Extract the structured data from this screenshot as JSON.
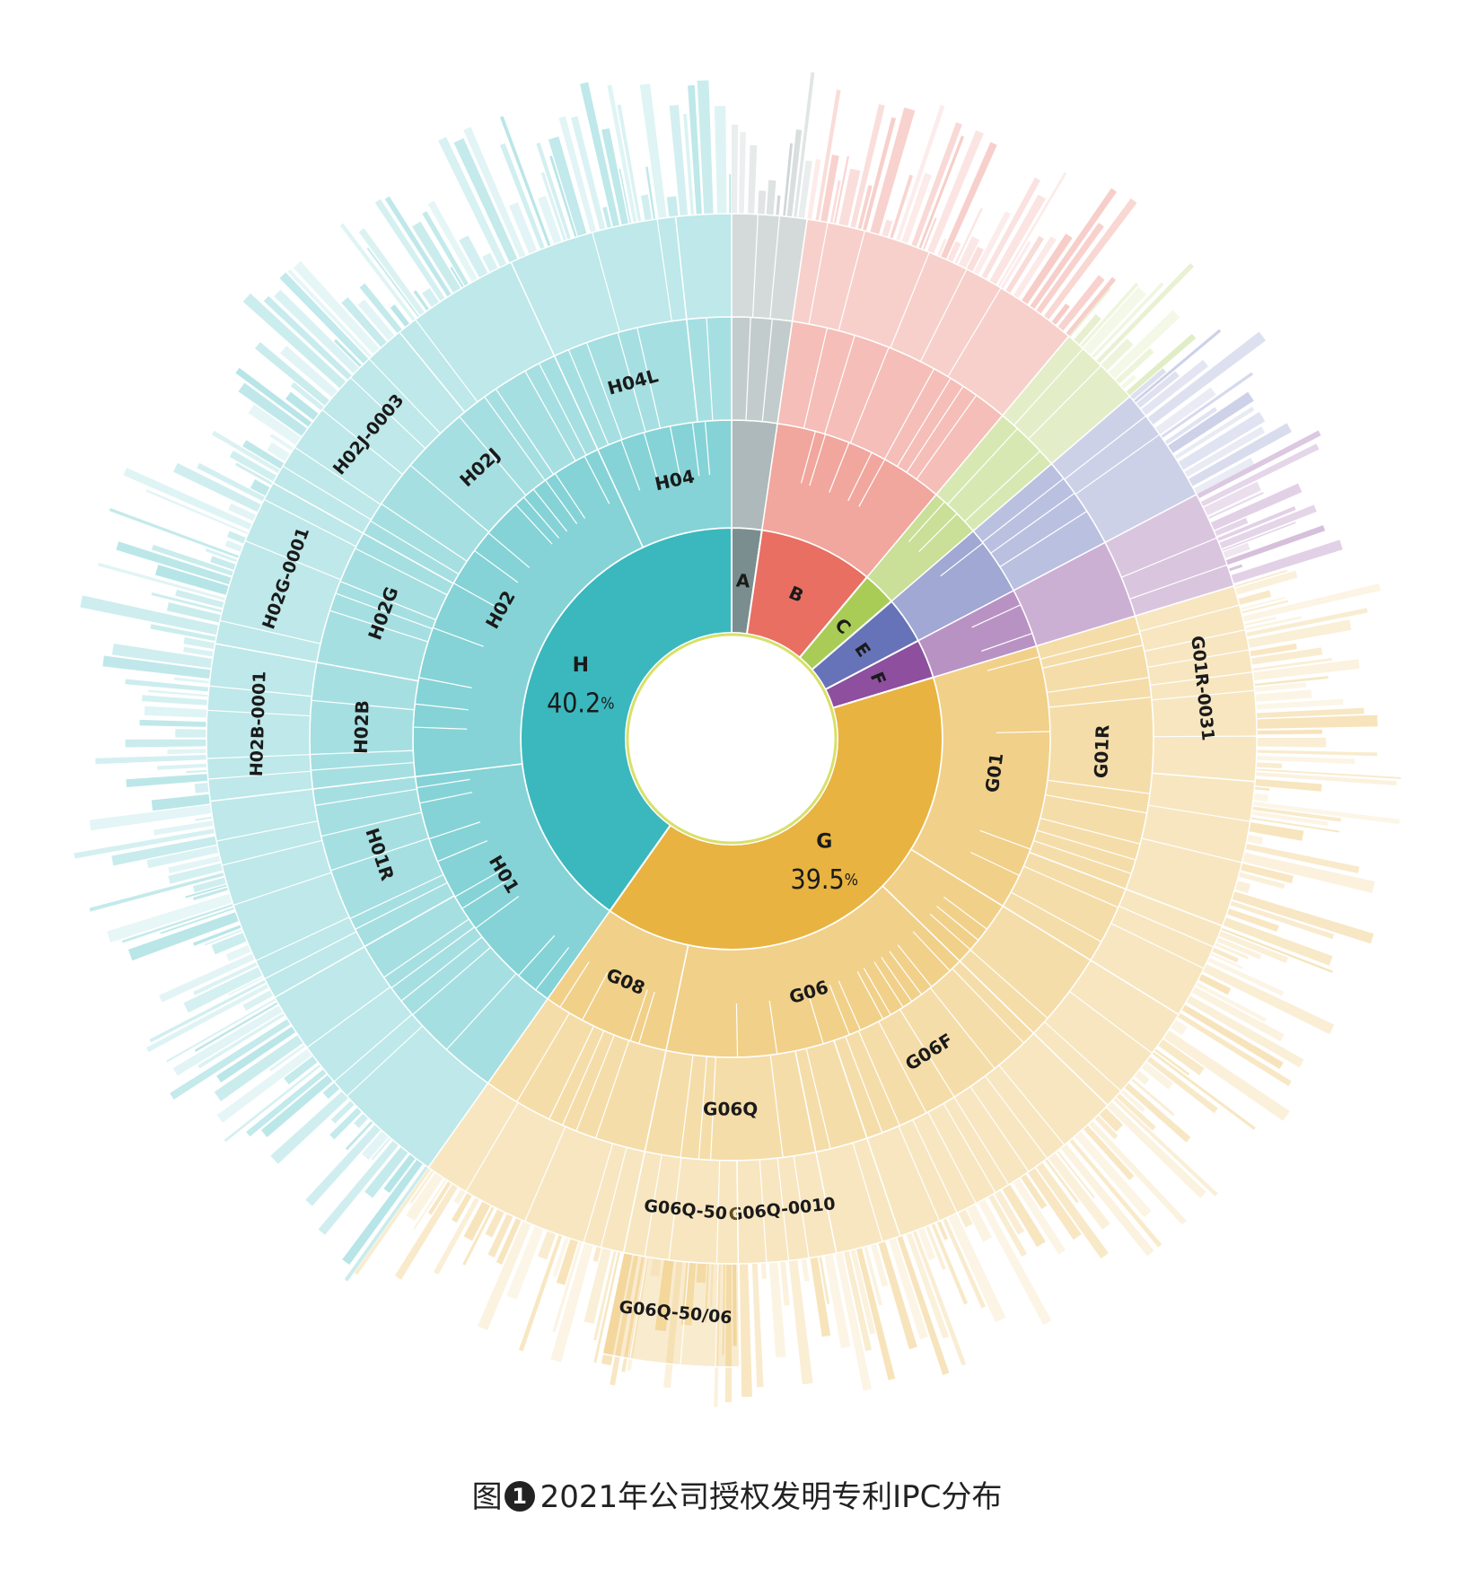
{
  "caption": {
    "prefix": "图",
    "number": "1",
    "text": "2021年公司授权发明专利IPC分布"
  },
  "chart_data": {
    "type": "sunburst",
    "title": "",
    "rings": [
      {
        "level": 1,
        "segments": [
          {
            "label": "A",
            "share": 2.3,
            "color": "#7b8e8f"
          },
          {
            "label": "B",
            "share": 8.8,
            "color": "#e86f62"
          },
          {
            "label": "C",
            "share": 2.6,
            "color": "#a9cc57"
          },
          {
            "label": "E",
            "share": 3.6,
            "color": "#6673b8"
          },
          {
            "label": "F",
            "share": 3.0,
            "color": "#8e4f9f"
          },
          {
            "label": "G",
            "share": 39.5,
            "pct_text": "39.5",
            "color": "#e8b340"
          },
          {
            "label": "H",
            "share": 40.2,
            "pct_text": "40.2",
            "color": "#3ab8bd"
          }
        ]
      },
      {
        "level": 2,
        "segments": [
          {
            "parent": "A",
            "label": "",
            "share": 2.3
          },
          {
            "parent": "B",
            "label": "",
            "share": 8.8
          },
          {
            "parent": "C",
            "label": "",
            "share": 2.6
          },
          {
            "parent": "E",
            "label": "",
            "share": 3.6
          },
          {
            "parent": "F",
            "label": "",
            "share": 3.0
          },
          {
            "parent": "G",
            "label": "G01",
            "share": 13.5
          },
          {
            "parent": "G",
            "label": "",
            "share": 3.5
          },
          {
            "parent": "G",
            "label": "G06",
            "share": 16.0
          },
          {
            "parent": "G",
            "label": "G08",
            "share": 6.5
          },
          {
            "parent": "H",
            "label": "H01",
            "share": 13.3
          },
          {
            "parent": "H",
            "label": "H02",
            "share": 20.0
          },
          {
            "parent": "H",
            "label": "H04",
            "share": 6.9
          }
        ]
      },
      {
        "level": 3,
        "segments": [
          {
            "parent": "A",
            "label": "",
            "share": 2.3
          },
          {
            "parent": "B",
            "label": "",
            "share": 8.8
          },
          {
            "parent": "C",
            "label": "",
            "share": 2.6
          },
          {
            "parent": "E",
            "label": "",
            "share": 3.6
          },
          {
            "parent": "F",
            "label": "",
            "share": 3.0
          },
          {
            "parent": "G01",
            "label": "G01R",
            "share": 10.5
          },
          {
            "parent": "G01",
            "label": "",
            "share": 3.0
          },
          {
            "parent": "G",
            "label": "",
            "share": 3.5
          },
          {
            "parent": "G06",
            "label": "G06F",
            "share": 7.5
          },
          {
            "parent": "G06",
            "label": "",
            "share": 2.0
          },
          {
            "parent": "G06",
            "label": "G06Q",
            "share": 6.5
          },
          {
            "parent": "G08",
            "label": "",
            "share": 6.5
          },
          {
            "parent": "H01",
            "label": "",
            "share": 7.0
          },
          {
            "parent": "H01",
            "label": "H01R",
            "share": 6.3
          },
          {
            "parent": "H02",
            "label": "H02B",
            "share": 4.8
          },
          {
            "parent": "H02",
            "label": "H02G",
            "share": 5.2
          },
          {
            "parent": "H02",
            "label": "H02J",
            "share": 10.0
          },
          {
            "parent": "H04",
            "label": "H04L",
            "share": 5.2
          },
          {
            "parent": "H04",
            "label": "",
            "share": 1.7
          }
        ]
      },
      {
        "level": 4,
        "segments": [
          {
            "parent": "A",
            "label": "",
            "share": 2.3
          },
          {
            "parent": "B",
            "label": "",
            "share": 8.8
          },
          {
            "parent": "C",
            "label": "",
            "share": 2.6
          },
          {
            "parent": "E",
            "label": "",
            "share": 3.6
          },
          {
            "parent": "F",
            "label": "",
            "share": 3.0
          },
          {
            "parent": "G01R",
            "label": "G01R-0031",
            "share": 6.0
          },
          {
            "parent": "G01R",
            "label": "",
            "share": 4.5
          },
          {
            "parent": "G01",
            "label": "",
            "share": 3.0
          },
          {
            "parent": "G",
            "label": "",
            "share": 3.5
          },
          {
            "parent": "G06F",
            "label": "",
            "share": 7.5
          },
          {
            "parent": "G06",
            "label": "",
            "share": 2.0
          },
          {
            "parent": "G06Q",
            "label": "G06Q-0010",
            "share": 3.0
          },
          {
            "parent": "G06Q",
            "label": "G06Q-50",
            "share": 3.5
          },
          {
            "parent": "G08",
            "label": "",
            "share": 6.5
          },
          {
            "parent": "H01",
            "label": "",
            "share": 7.0
          },
          {
            "parent": "H01R",
            "label": "",
            "share": 6.3
          },
          {
            "parent": "H02B",
            "label": "H02B-0001",
            "share": 4.8
          },
          {
            "parent": "H02G",
            "label": "H02G-0001",
            "share": 5.2
          },
          {
            "parent": "H02J",
            "label": "H02J-0003",
            "share": 6.0
          },
          {
            "parent": "H02J",
            "label": "",
            "share": 4.0
          },
          {
            "parent": "H04L",
            "label": "",
            "share": 5.2
          },
          {
            "parent": "H04",
            "label": "",
            "share": 1.7
          }
        ]
      },
      {
        "level": 5,
        "segments": [
          {
            "parent": "G06Q-50",
            "label": "G06Q-50/06",
            "share": 3.5
          }
        ]
      }
    ],
    "outer_fringe": "fine radial slices continue outward in each top-level color"
  }
}
